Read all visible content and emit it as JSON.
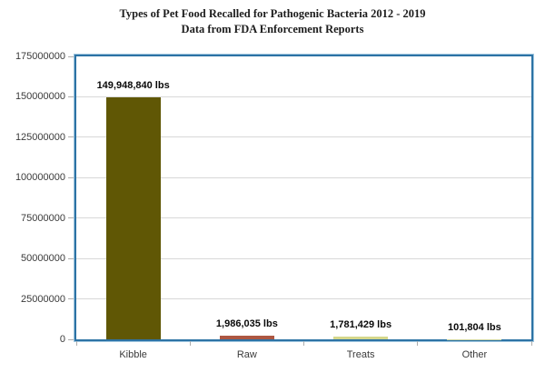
{
  "title": "Types of Pet Food Recalled for Pathogenic Bacteria 2012 - 2019",
  "subtitle": "Data from FDA Enforcement Reports",
  "chart_data": {
    "type": "bar",
    "title": "Types of Pet Food Recalled for Pathogenic Bacteria 2012 - 2019",
    "subtitle": "Data from FDA Enforcement Reports",
    "categories": [
      "Kibble",
      "Raw",
      "Treats",
      "Other"
    ],
    "values": [
      149948840,
      1986035,
      1781429,
      101804
    ],
    "value_labels": [
      "149,948,840 lbs",
      "1,986,035 lbs",
      "1,781,429 lbs",
      "101,804 lbs"
    ],
    "bar_colors": [
      "#605705",
      "#ad5742",
      "#d5d78b",
      "#cfd6a0"
    ],
    "xlabel": "",
    "ylabel": "",
    "ylim": [
      0,
      175000000
    ],
    "y_ticks": [
      0,
      25000000,
      50000000,
      75000000,
      100000000,
      125000000,
      150000000,
      175000000
    ],
    "y_tick_labels": [
      "0",
      "25000000",
      "50000000",
      "75000000",
      "100000000",
      "125000000",
      "150000000",
      "175000000"
    ],
    "grid": true,
    "legend": false,
    "plot_border_color": "#2d73a5",
    "plot_border_halo_color": "#9ec5de",
    "gridline_color": "#d8d8d8",
    "tick_color": "#adadad"
  }
}
